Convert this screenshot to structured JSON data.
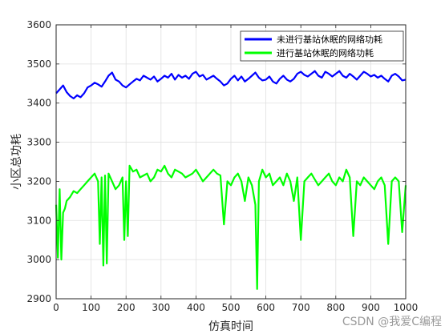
{
  "chart_data": {
    "type": "line",
    "title": "",
    "xlabel": "仿真时间",
    "ylabel": "小区总功耗",
    "xlim": [
      0,
      1000
    ],
    "ylim": [
      2900,
      3600
    ],
    "xticks": [
      0,
      100,
      200,
      300,
      400,
      500,
      600,
      700,
      800,
      900,
      1000
    ],
    "yticks": [
      2900,
      3000,
      3100,
      3200,
      3300,
      3400,
      3500,
      3600
    ],
    "grid": true,
    "legend_position": "top-right",
    "series": [
      {
        "name": "未进行基站休眠的网络功耗",
        "color": "#0000ff",
        "x": [
          0,
          10,
          20,
          30,
          40,
          50,
          60,
          70,
          80,
          90,
          100,
          110,
          120,
          130,
          140,
          150,
          160,
          170,
          180,
          190,
          200,
          210,
          220,
          230,
          240,
          250,
          260,
          270,
          280,
          290,
          300,
          310,
          320,
          330,
          340,
          350,
          360,
          370,
          380,
          390,
          400,
          410,
          420,
          430,
          440,
          450,
          460,
          470,
          480,
          490,
          500,
          510,
          520,
          530,
          540,
          550,
          560,
          570,
          580,
          590,
          600,
          610,
          620,
          630,
          640,
          650,
          660,
          670,
          680,
          690,
          700,
          710,
          720,
          730,
          740,
          750,
          760,
          770,
          780,
          790,
          800,
          810,
          820,
          830,
          840,
          850,
          860,
          870,
          880,
          890,
          900,
          910,
          920,
          930,
          940,
          950,
          960,
          970,
          980,
          990,
          1000
        ],
        "y": [
          3425,
          3435,
          3445,
          3428,
          3418,
          3412,
          3420,
          3415,
          3425,
          3440,
          3445,
          3452,
          3448,
          3442,
          3455,
          3470,
          3478,
          3460,
          3455,
          3445,
          3440,
          3448,
          3455,
          3462,
          3458,
          3470,
          3465,
          3460,
          3468,
          3455,
          3462,
          3470,
          3465,
          3475,
          3460,
          3472,
          3465,
          3470,
          3462,
          3475,
          3480,
          3468,
          3472,
          3460,
          3465,
          3470,
          3462,
          3455,
          3445,
          3450,
          3462,
          3470,
          3458,
          3468,
          3455,
          3462,
          3470,
          3478,
          3465,
          3458,
          3460,
          3468,
          3455,
          3450,
          3462,
          3470,
          3460,
          3455,
          3462,
          3475,
          3480,
          3472,
          3468,
          3475,
          3482,
          3470,
          3465,
          3480,
          3475,
          3468,
          3475,
          3482,
          3470,
          3465,
          3475,
          3468,
          3460,
          3470,
          3480,
          3475,
          3468,
          3472,
          3465,
          3470,
          3462,
          3455,
          3470,
          3475,
          3468,
          3458,
          3460
        ]
      },
      {
        "name": "进行基站休眠的网络功耗",
        "color": "#00ff00",
        "x": [
          0,
          5,
          10,
          15,
          20,
          25,
          30,
          40,
          50,
          60,
          70,
          80,
          90,
          100,
          110,
          120,
          125,
          130,
          135,
          140,
          145,
          150,
          160,
          170,
          180,
          190,
          195,
          200,
          205,
          210,
          220,
          230,
          240,
          250,
          260,
          270,
          280,
          290,
          300,
          310,
          320,
          330,
          340,
          350,
          360,
          370,
          380,
          390,
          400,
          410,
          420,
          430,
          440,
          450,
          460,
          470,
          480,
          490,
          500,
          510,
          520,
          530,
          540,
          550,
          560,
          570,
          575,
          580,
          590,
          600,
          610,
          620,
          630,
          640,
          650,
          660,
          670,
          680,
          690,
          700,
          710,
          720,
          730,
          740,
          750,
          760,
          770,
          780,
          790,
          800,
          810,
          820,
          830,
          840,
          850,
          860,
          870,
          880,
          890,
          900,
          910,
          920,
          930,
          940,
          950,
          960,
          970,
          980,
          990,
          1000
        ],
        "y": [
          3140,
          3005,
          3180,
          3000,
          3120,
          3130,
          3150,
          3160,
          3175,
          3170,
          3180,
          3190,
          3200,
          3210,
          3220,
          3200,
          3040,
          3210,
          2985,
          3215,
          2990,
          3220,
          3200,
          3180,
          3190,
          3210,
          3050,
          3200,
          3060,
          3240,
          3225,
          3230,
          3210,
          3215,
          3220,
          3200,
          3210,
          3230,
          3225,
          3240,
          3220,
          3210,
          3230,
          3225,
          3220,
          3210,
          3215,
          3220,
          3230,
          3215,
          3200,
          3210,
          3220,
          3230,
          3220,
          3215,
          3090,
          3200,
          3190,
          3210,
          3220,
          3200,
          3150,
          3210,
          3190,
          3140,
          2925,
          3200,
          3230,
          3210,
          3220,
          3190,
          3200,
          3210,
          3190,
          3220,
          3200,
          3150,
          3210,
          3050,
          3200,
          3210,
          3220,
          3205,
          3190,
          3200,
          3210,
          3220,
          3200,
          3190,
          3210,
          3200,
          3230,
          3210,
          3060,
          3200,
          3190,
          3210,
          3200,
          3190,
          3180,
          3200,
          3210,
          3190,
          3040,
          3200,
          3210,
          3200,
          3070,
          3190
        ]
      }
    ]
  },
  "watermark": "CSDN @我爱C编程"
}
